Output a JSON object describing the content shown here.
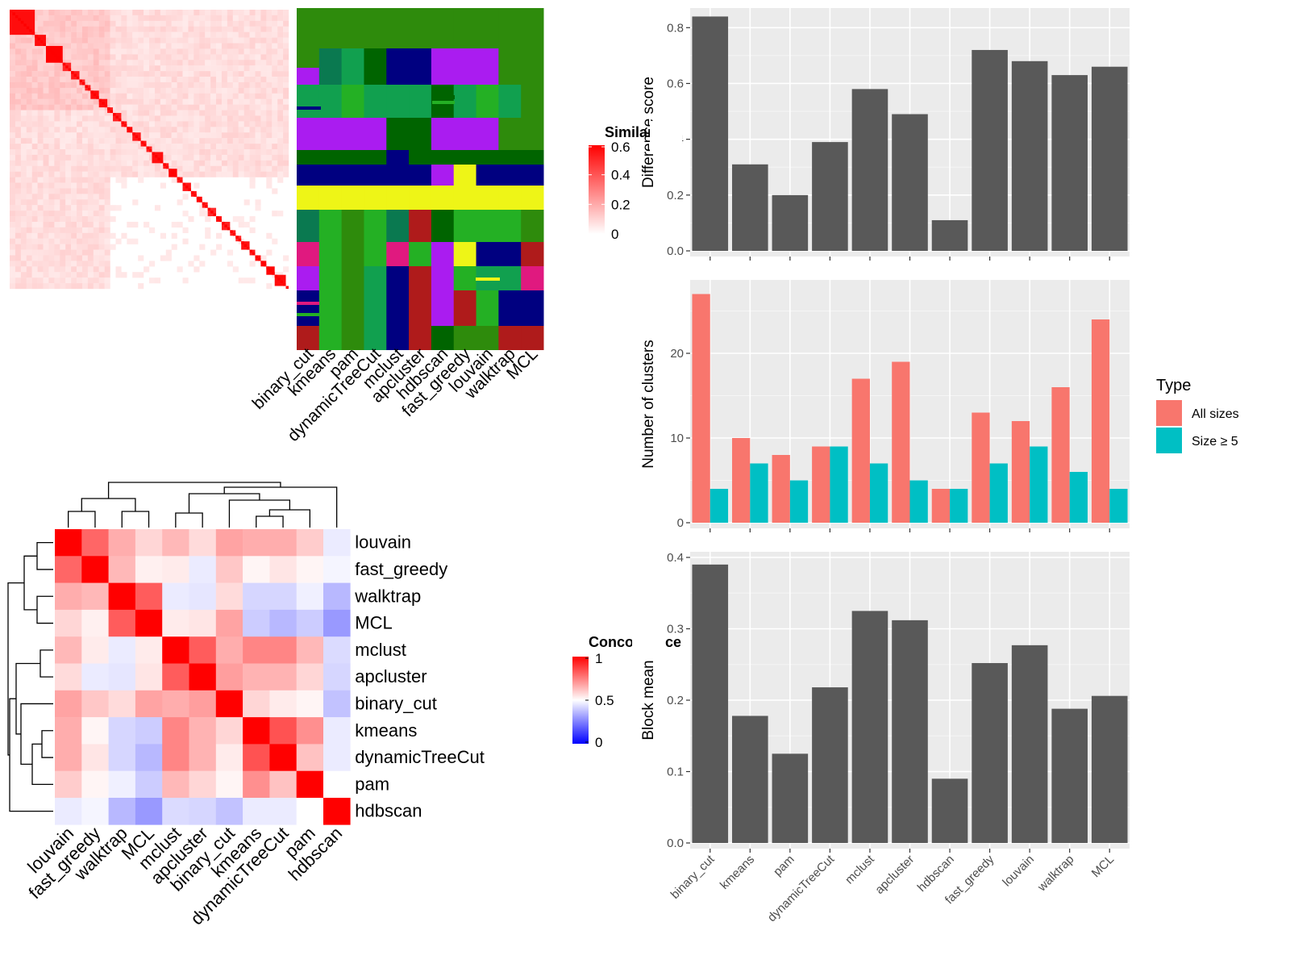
{
  "chart_data": [
    {
      "type": "heatmap",
      "name": "similarity-heatmap",
      "legend_title": "Similarity",
      "legend_ticks": [
        "0.6",
        "0.4",
        "0.2",
        "0"
      ],
      "legend_tick_values": [
        0.6,
        0.4,
        0.2,
        0
      ],
      "note": "Cell-by-cell similarity matrix with block diagonal of high similarity (red)"
    },
    {
      "type": "heatmap",
      "name": "cluster-membership",
      "columns": [
        "binary_cut",
        "kmeans",
        "pam",
        "dynamicTreeCut",
        "mclust",
        "apcluster",
        "hdbscan",
        "fast_greedy",
        "louvain",
        "walktrap",
        "MCL"
      ],
      "palette": [
        "#2e8b0c",
        "#aa1cf0",
        "#11a04f",
        "#0a7950",
        "#000080",
        "#eef517",
        "#24b024",
        "#006400",
        "#af1b1b",
        "#e0197f",
        "#3c8c10"
      ]
    },
    {
      "type": "heatmap",
      "name": "concordance-heatmap",
      "legend_title": "Concordance",
      "legend_ticks": [
        "1",
        "0.5",
        "0"
      ],
      "legend_tick_values": [
        1,
        0.5,
        0
      ],
      "rows": [
        "louvain",
        "fast_greedy",
        "walktrap",
        "MCL",
        "mclust",
        "apcluster",
        "binary_cut",
        "kmeans",
        "dynamicTreeCut",
        "pam",
        "hdbscan"
      ],
      "columns": [
        "louvain",
        "fast_greedy",
        "walktrap",
        "MCL",
        "mclust",
        "apcluster",
        "binary_cut",
        "kmeans",
        "dynamicTreeCut",
        "pam",
        "hdbscan"
      ],
      "values": [
        [
          1.0,
          0.8,
          0.66,
          0.58,
          0.64,
          0.57,
          0.68,
          0.66,
          0.66,
          0.6,
          0.46
        ],
        [
          0.8,
          1.0,
          0.64,
          0.53,
          0.54,
          0.46,
          0.61,
          0.52,
          0.55,
          0.52,
          0.48
        ],
        [
          0.66,
          0.64,
          1.0,
          0.82,
          0.46,
          0.45,
          0.57,
          0.42,
          0.42,
          0.47,
          0.36
        ],
        [
          0.58,
          0.53,
          0.82,
          1.0,
          0.54,
          0.55,
          0.68,
          0.4,
          0.36,
          0.4,
          0.3
        ],
        [
          0.64,
          0.54,
          0.46,
          0.54,
          1.0,
          0.82,
          0.66,
          0.74,
          0.74,
          0.64,
          0.43
        ],
        [
          0.57,
          0.46,
          0.45,
          0.55,
          0.82,
          1.0,
          0.69,
          0.65,
          0.65,
          0.58,
          0.42
        ],
        [
          0.68,
          0.61,
          0.57,
          0.68,
          0.66,
          0.69,
          1.0,
          0.58,
          0.54,
          0.52,
          0.38
        ],
        [
          0.66,
          0.52,
          0.42,
          0.4,
          0.74,
          0.65,
          0.58,
          1.0,
          0.84,
          0.72,
          0.46
        ],
        [
          0.66,
          0.55,
          0.42,
          0.36,
          0.74,
          0.65,
          0.54,
          0.84,
          1.0,
          0.62,
          0.46
        ],
        [
          0.6,
          0.52,
          0.47,
          0.4,
          0.64,
          0.58,
          0.52,
          0.72,
          0.62,
          1.0,
          0.5
        ],
        [
          0.46,
          0.48,
          0.36,
          0.3,
          0.43,
          0.42,
          0.38,
          0.46,
          0.46,
          0.5,
          1.0
        ]
      ]
    },
    {
      "type": "bar",
      "name": "difference-score",
      "categories": [
        "binary_cut",
        "kmeans",
        "pam",
        "dynamicTreeCut",
        "mclust",
        "apcluster",
        "hdbscan",
        "fast_greedy",
        "louvain",
        "walktrap",
        "MCL"
      ],
      "values": [
        0.84,
        0.31,
        0.2,
        0.39,
        0.58,
        0.49,
        0.11,
        0.72,
        0.68,
        0.63,
        0.66
      ],
      "ylabel": "Difference score",
      "ylim": [
        0,
        0.85
      ],
      "yticks": [
        0.0,
        0.2,
        0.4,
        0.6,
        0.8
      ],
      "ytick_labels": [
        "0.0",
        "0.2",
        "0.4",
        "0.6",
        "0.8"
      ],
      "bar_color": "#595959"
    },
    {
      "type": "bar",
      "name": "number-of-clusters",
      "categories": [
        "binary_cut",
        "kmeans",
        "pam",
        "dynamicTreeCut",
        "mclust",
        "apcluster",
        "hdbscan",
        "fast_greedy",
        "louvain",
        "walktrap",
        "MCL"
      ],
      "series": [
        {
          "name": "All sizes",
          "color": "#f8766d",
          "values": [
            27,
            10,
            8,
            9,
            17,
            19,
            4,
            13,
            12,
            16,
            24
          ]
        },
        {
          "name": "Size ≥ 5",
          "color": "#00bfc4",
          "values": [
            4,
            7,
            5,
            9,
            7,
            5,
            4,
            7,
            9,
            6,
            4
          ]
        }
      ],
      "ylabel": "Number of clusters",
      "ylim": [
        0,
        28
      ],
      "yticks": [
        0,
        10,
        20
      ],
      "ytick_labels": [
        "0",
        "10",
        "20"
      ],
      "legend_title": "Type"
    },
    {
      "type": "bar",
      "name": "block-mean",
      "categories": [
        "binary_cut",
        "kmeans",
        "pam",
        "dynamicTreeCut",
        "mclust",
        "apcluster",
        "hdbscan",
        "fast_greedy",
        "louvain",
        "walktrap",
        "MCL"
      ],
      "values": [
        0.39,
        0.178,
        0.125,
        0.218,
        0.325,
        0.312,
        0.09,
        0.252,
        0.277,
        0.188,
        0.206
      ],
      "ylabel": "Block mean",
      "ylim": [
        0,
        0.4
      ],
      "yticks": [
        0.0,
        0.1,
        0.2,
        0.3,
        0.4
      ],
      "ytick_labels": [
        "0.0",
        "0.1",
        "0.2",
        "0.3",
        "0.4"
      ],
      "bar_color": "#595959"
    }
  ]
}
